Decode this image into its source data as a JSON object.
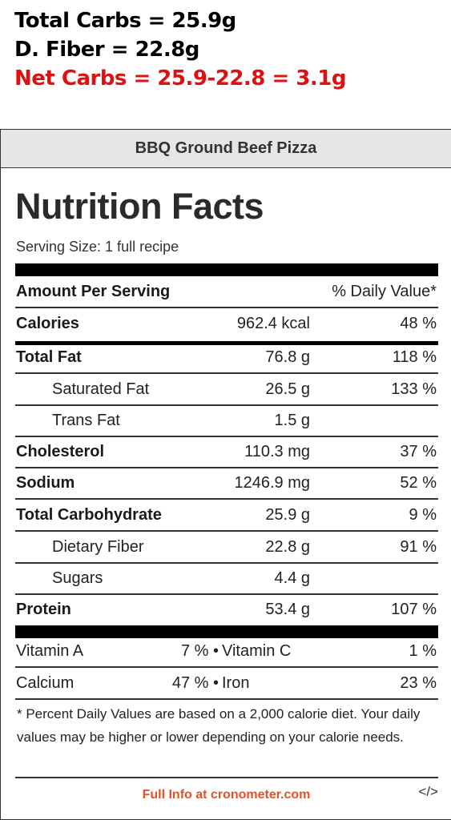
{
  "notes": {
    "total_carbs": "Total Carbs = 25.9g",
    "fiber": "D. Fiber = 22.8g",
    "net_carbs": "Net Carbs = 25.9-22.8 = 3.1g",
    "net_carbs_color": "#e01010"
  },
  "label": {
    "recipe_name": "BBQ Ground Beef Pizza",
    "title": "Nutrition Facts",
    "serving_size": "Serving Size: 1 full recipe",
    "amount_per_serving": "Amount Per Serving",
    "daily_value_header": "% Daily Value*",
    "rows": [
      {
        "name": "Calories",
        "amount": "962.4 kcal",
        "dv": "48 %"
      },
      {
        "name": "Total Fat",
        "amount": "76.8 g",
        "dv": "118 %"
      },
      {
        "name": "Saturated Fat",
        "amount": "26.5 g",
        "dv": "133 %"
      },
      {
        "name": "Trans Fat",
        "amount": "1.5 g",
        "dv": ""
      },
      {
        "name": "Cholesterol",
        "amount": "110.3 mg",
        "dv": "37 %"
      },
      {
        "name": "Sodium",
        "amount": "1246.9 mg",
        "dv": "52 %"
      },
      {
        "name": "Total Carbohydrate",
        "amount": "25.9 g",
        "dv": "9 %"
      },
      {
        "name": "Dietary Fiber",
        "amount": "22.8 g",
        "dv": "91 %"
      },
      {
        "name": "Sugars",
        "amount": "4.4 g",
        "dv": ""
      },
      {
        "name": "Protein",
        "amount": "53.4 g",
        "dv": "107 %"
      }
    ],
    "vitamins": [
      {
        "left_name": "Vitamin A",
        "left_value": "7 % •",
        "right_name": "Vitamin C",
        "right_value": "1 %"
      },
      {
        "left_name": "Calcium",
        "left_value": "47 % •",
        "right_name": "Iron",
        "right_value": "23 %"
      }
    ],
    "footnote": "* Percent Daily Values are based on a 2,000 calorie diet. Your daily values may be higher or lower depending on your calorie needs.",
    "full_info_link": "Full Info at cronometer.com",
    "full_info_color": "#e0522a",
    "embed_code": "</>"
  }
}
